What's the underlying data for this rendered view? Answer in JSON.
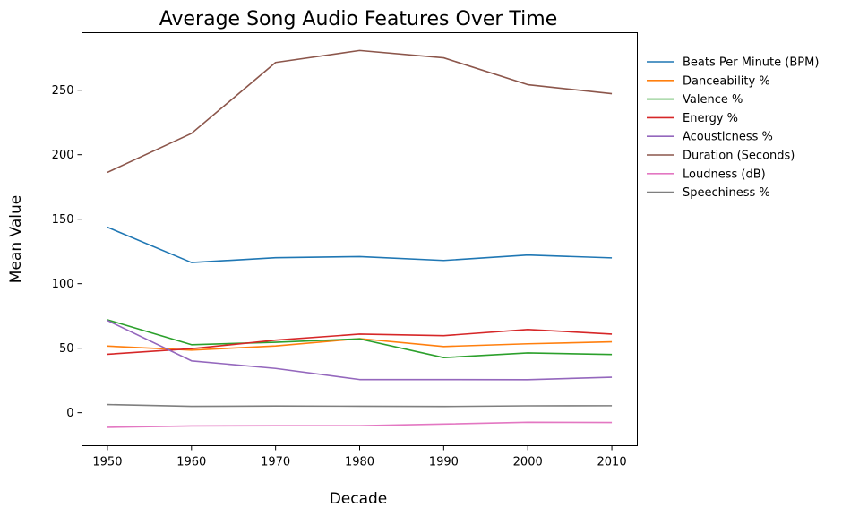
{
  "chart_data": {
    "type": "line",
    "title": "Average Song Audio Features Over Time",
    "xlabel": "Decade",
    "ylabel": "Mean Value",
    "x": [
      1950,
      1960,
      1970,
      1980,
      1990,
      2000,
      2010
    ],
    "xticks": [
      1950,
      1960,
      1970,
      1980,
      1990,
      2000,
      2010
    ],
    "yticks": [
      0,
      50,
      100,
      150,
      200,
      250
    ],
    "xlim": [
      1946.97,
      2013.03
    ],
    "ylim": [
      -25.6,
      294.6
    ],
    "grid": false,
    "legend_position": "right, outside",
    "series": [
      {
        "name": "Beats Per Minute (BPM)",
        "color": "#1f77b4",
        "values": [
          143.8,
          116.4,
          120.1,
          121.0,
          118.0,
          122.2,
          120.0
        ]
      },
      {
        "name": "Danceability %",
        "color": "#ff7f0e",
        "values": [
          51.6,
          48.5,
          51.7,
          57.4,
          51.3,
          53.4,
          54.9
        ]
      },
      {
        "name": "Valence %",
        "color": "#2ca02c",
        "values": [
          72.0,
          52.7,
          54.6,
          57.2,
          42.7,
          46.3,
          45.1
        ]
      },
      {
        "name": "Energy %",
        "color": "#d62728",
        "values": [
          45.3,
          49.6,
          56.2,
          60.9,
          59.7,
          64.5,
          60.9
        ]
      },
      {
        "name": "Acousticness %",
        "color": "#9467bd",
        "values": [
          71.5,
          40.2,
          34.3,
          25.7,
          25.7,
          25.6,
          27.5
        ]
      },
      {
        "name": "Duration (Seconds)",
        "color": "#8c564b",
        "values": [
          186.3,
          216.5,
          271.5,
          280.8,
          275.1,
          254.3,
          247.3
        ]
      },
      {
        "name": "Loudness (dB)",
        "color": "#e377c2",
        "values": [
          -11.3,
          -10.3,
          -10.1,
          -10.1,
          -8.8,
          -7.4,
          -7.6
        ]
      },
      {
        "name": "Speechiness %",
        "color": "#7f7f7f",
        "values": [
          6.3,
          4.9,
          5.2,
          5.0,
          4.8,
          5.3,
          5.4
        ]
      }
    ]
  }
}
